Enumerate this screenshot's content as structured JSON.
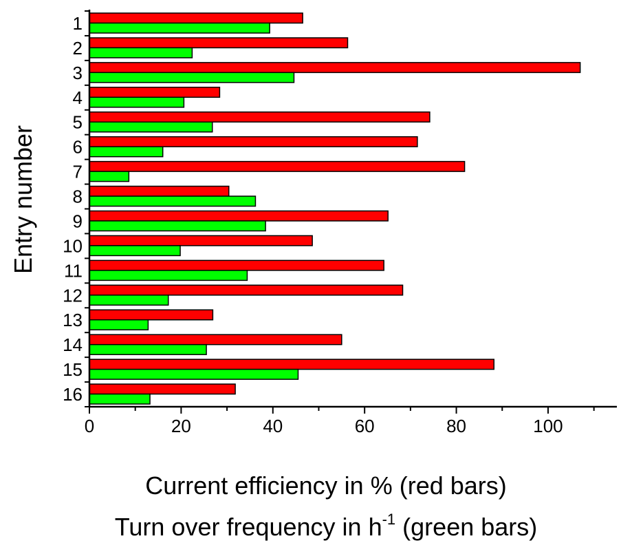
{
  "chart_data": {
    "type": "bar",
    "orientation": "horizontal",
    "categories": [
      "1",
      "2",
      "3",
      "4",
      "5",
      "6",
      "7",
      "8",
      "9",
      "10",
      "11",
      "12",
      "13",
      "14",
      "15",
      "16"
    ],
    "series": [
      {
        "name": "red bars",
        "color": "#ff0000",
        "values": [
          46.5,
          56.3,
          107,
          28.4,
          74.2,
          71.5,
          81.8,
          30.4,
          65.1,
          48.6,
          64.2,
          68.3,
          26.9,
          55.0,
          88.2,
          31.8
        ]
      },
      {
        "name": "green bars",
        "color": "#00ff00",
        "values": [
          39.3,
          22.4,
          44.6,
          20.6,
          26.8,
          16.0,
          8.6,
          36.2,
          38.4,
          19.8,
          34.4,
          17.2,
          12.8,
          25.5,
          45.5,
          13.2
        ]
      }
    ],
    "xlim": [
      0,
      115
    ],
    "xticks": [
      "0",
      "20",
      "40",
      "60",
      "80",
      "100"
    ],
    "ylabel": "Entry number",
    "xlabel": {
      "line1": "Current efficiency in % (red bars)",
      "line2_prefix": "Turn over frequency in h",
      "line2_sup": "-1",
      "line2_suffix": " (green bars)"
    },
    "grid": false,
    "legend": "none"
  }
}
